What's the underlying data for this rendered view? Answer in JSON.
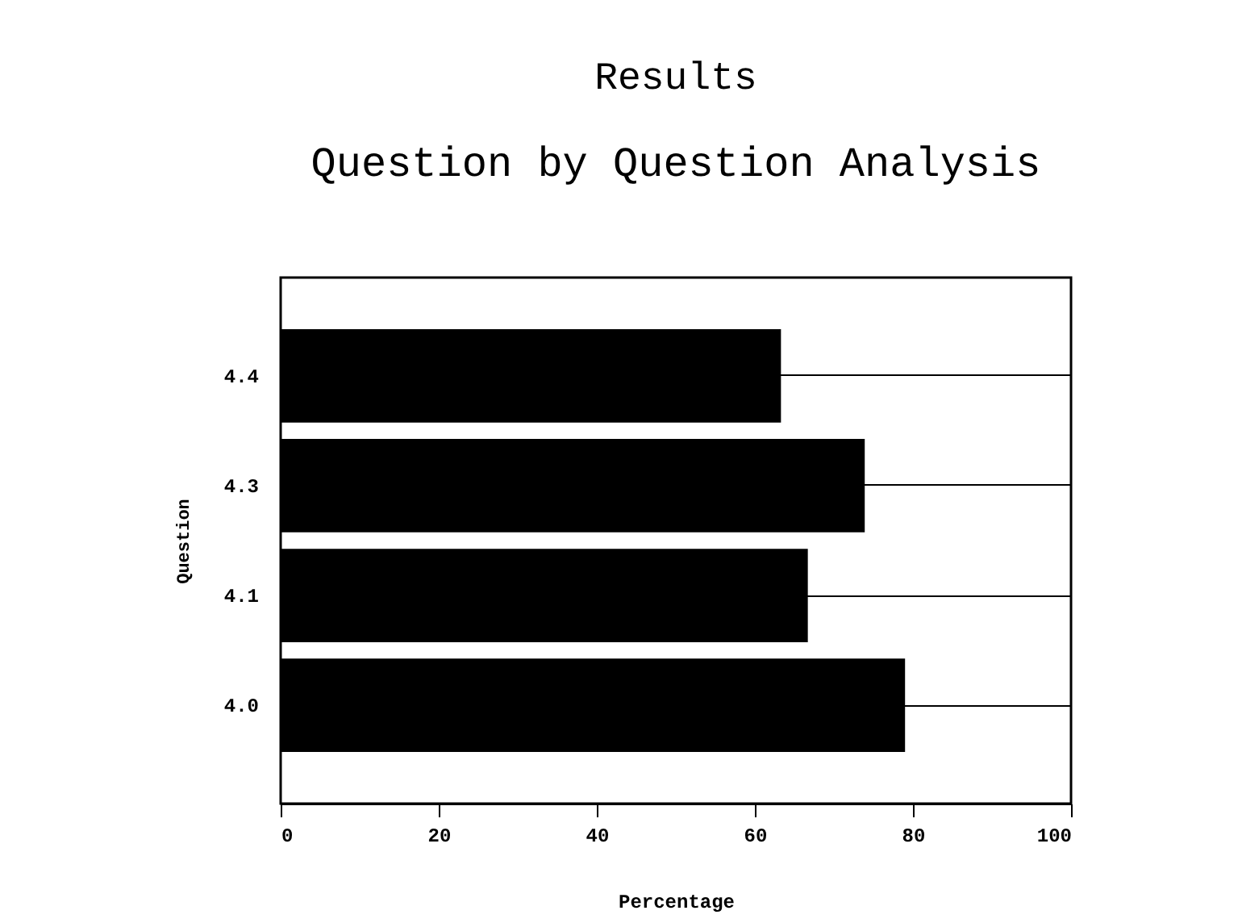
{
  "chart_data": {
    "type": "bar",
    "orientation": "horizontal",
    "title": "Results",
    "subtitle": "Question by Question Analysis",
    "xlabel": "Percentage",
    "ylabel": "Question",
    "categories": [
      "4.4",
      "4.3",
      "4.1",
      "4.0"
    ],
    "values": [
      63.3,
      73.9,
      66.7,
      79.0
    ],
    "color": "#000000",
    "xlim": [
      0,
      100
    ],
    "xticks": [
      0,
      20,
      40,
      60,
      80,
      100
    ],
    "grid": "y"
  }
}
